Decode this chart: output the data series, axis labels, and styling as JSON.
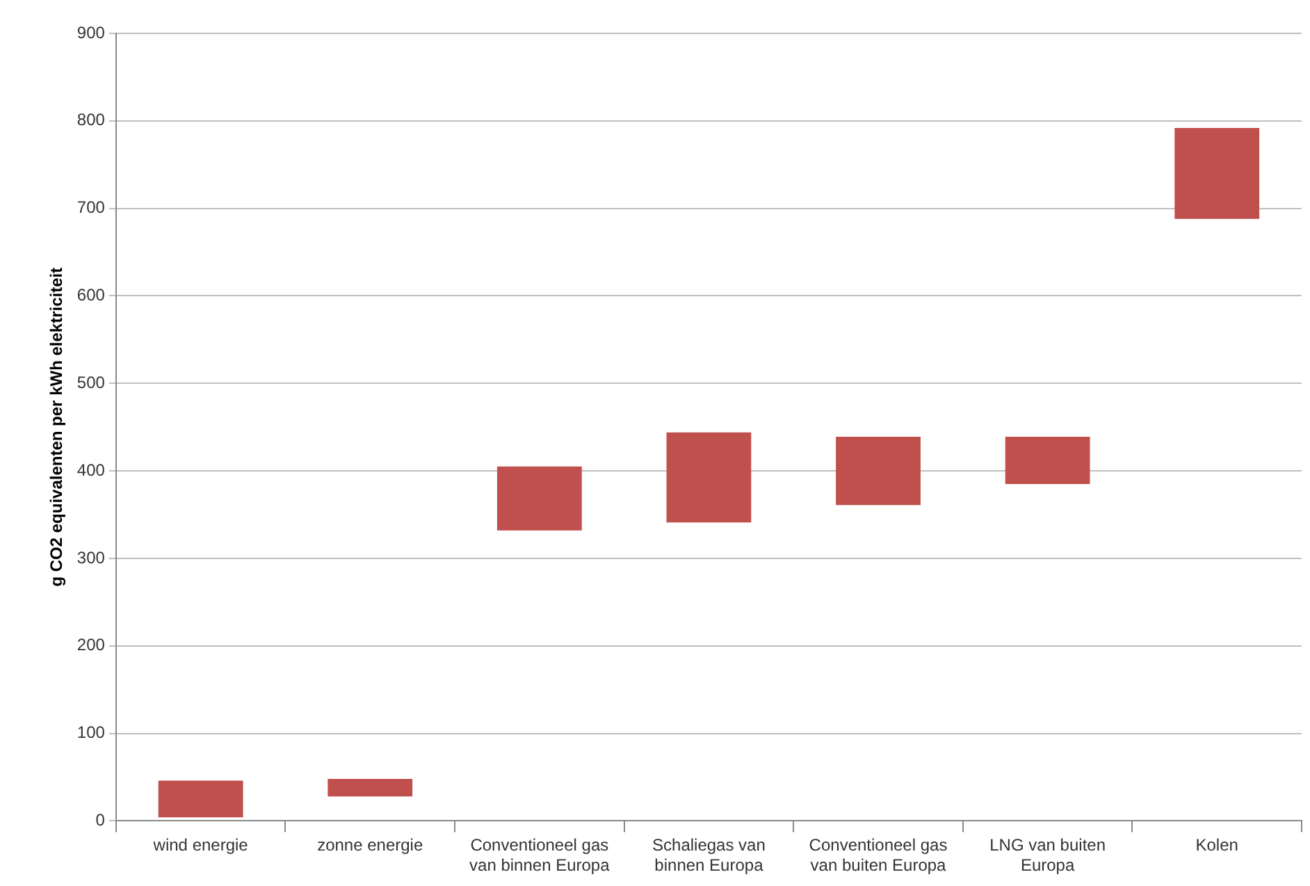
{
  "chart_data": {
    "type": "bar",
    "ylabel": "g CO2 equivalenten per kWh elektriciteit",
    "categories": [
      "wind energie",
      "zonne energie",
      "Conventioneel gas van binnen Europa",
      "Schaliegas van binnen Europa",
      "Conventioneel gas van buiten Europa",
      "LNG van buiten Europa",
      "Kolen"
    ],
    "base": [
      4,
      28,
      332,
      341,
      361,
      385,
      688
    ],
    "values": [
      42,
      20,
      73,
      103,
      78,
      54,
      104
    ],
    "color": "#c0504d",
    "ylim": [
      0,
      900
    ],
    "yticks": [
      0,
      100,
      200,
      300,
      400,
      500,
      600,
      700,
      800,
      900
    ],
    "grid": "y",
    "legend": false
  }
}
